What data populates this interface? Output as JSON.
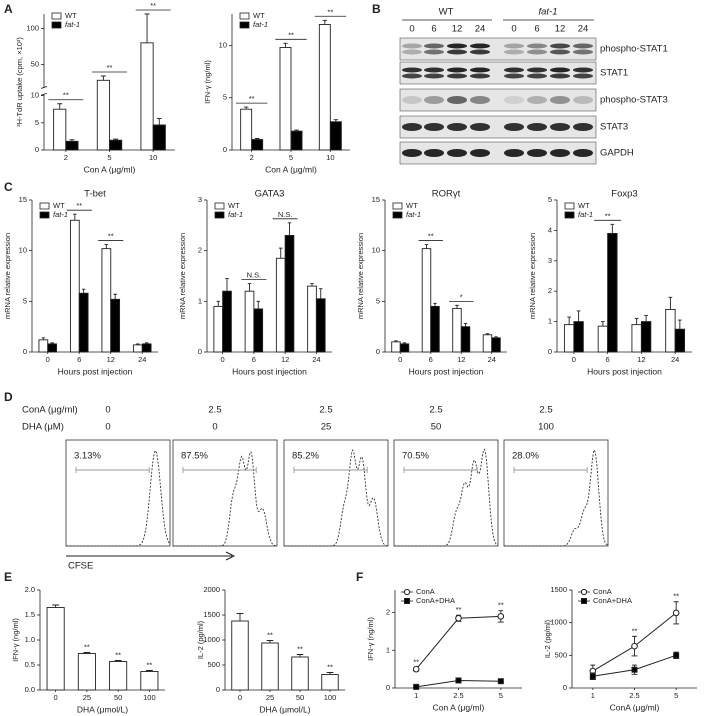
{
  "panel_labels": [
    "A",
    "B",
    "C",
    "D",
    "E",
    "F"
  ],
  "blot": {
    "groups": [
      "WT",
      "fat-1"
    ],
    "lanes": [
      "0",
      "6",
      "12",
      "24",
      "0",
      "6",
      "12",
      "24"
    ],
    "rows": [
      "phospho-STAT1",
      "STAT1",
      "phospho-STAT3",
      "STAT3",
      "GAPDH"
    ]
  },
  "flow": {
    "row_labels": [
      "ConA (μg/ml)",
      "DHA (μM)"
    ],
    "cona": [
      "0",
      "2.5",
      "2.5",
      "2.5",
      "2.5"
    ],
    "dha": [
      "0",
      "0",
      "25",
      "50",
      "100"
    ],
    "percentages": [
      "3.13%",
      "87.5%",
      "85.2%",
      "70.5%",
      "28.0%"
    ],
    "axis_label": "CFSE"
  },
  "chart_data": [
    {
      "type": "bar",
      "ylabel": "³H-TdR uptake (cpm, ×10³)",
      "xlabel": "Con A (μg/ml)",
      "categories": [
        "2",
        "5",
        "10"
      ],
      "ylim": [
        0,
        120
      ],
      "ybreak": [
        10,
        20
      ],
      "yticks": [
        0,
        5,
        10,
        50,
        100
      ],
      "series": [
        {
          "name": "WT",
          "color": "#ffffff",
          "values": [
            7.5,
            28,
            80
          ],
          "errors": [
            1,
            6,
            40
          ]
        },
        {
          "name": "fat-1",
          "color": "#000000",
          "values": [
            1.6,
            1.8,
            4.6
          ],
          "errors": [
            0.3,
            0.2,
            1.2
          ]
        }
      ],
      "significance": [
        "**",
        "**",
        "**"
      ]
    },
    {
      "type": "bar",
      "ylabel": "IFN-γ (ng/ml)",
      "xlabel": "Con A (μg/ml)",
      "categories": [
        "2",
        "5",
        "10"
      ],
      "ylim": [
        0,
        13
      ],
      "yticks": [
        0,
        5,
        10
      ],
      "series": [
        {
          "name": "WT",
          "color": "#ffffff",
          "values": [
            3.9,
            9.8,
            12
          ],
          "errors": [
            0.2,
            0.4,
            0.4
          ]
        },
        {
          "name": "fat-1",
          "color": "#000000",
          "values": [
            1,
            1.8,
            2.7
          ],
          "errors": [
            0.1,
            0.1,
            0.2
          ]
        }
      ],
      "significance": [
        "**",
        "**",
        "**"
      ]
    },
    {
      "type": "bar",
      "title": "T-bet",
      "ylabel": "mRNA relative expression",
      "xlabel": "Hours post injection",
      "categories": [
        "0",
        "6",
        "12",
        "24"
      ],
      "ylim": [
        0,
        15
      ],
      "yticks": [
        0,
        5,
        10,
        15
      ],
      "series": [
        {
          "name": "WT",
          "color": "#ffffff",
          "values": [
            1.2,
            13,
            10.2,
            0.7
          ],
          "errors": [
            0.2,
            0.6,
            0.4,
            0.1
          ]
        },
        {
          "name": "fat-1",
          "color": "#000000",
          "values": [
            0.8,
            5.8,
            5.2,
            0.8
          ],
          "errors": [
            0.1,
            0.4,
            0.5,
            0.1
          ]
        }
      ],
      "significance": [
        null,
        "**",
        "**",
        null
      ]
    },
    {
      "type": "bar",
      "title": "GATA3",
      "ylabel": "mRNA relative expression",
      "xlabel": "Hours post injection",
      "categories": [
        "0",
        "6",
        "12",
        "24"
      ],
      "ylim": [
        0,
        3
      ],
      "yticks": [
        0,
        1,
        2,
        3
      ],
      "series": [
        {
          "name": "WT",
          "color": "#ffffff",
          "values": [
            0.9,
            1.2,
            1.85,
            1.3
          ],
          "errors": [
            0.1,
            0.15,
            0.2,
            0.05
          ]
        },
        {
          "name": "fat-1",
          "color": "#000000",
          "values": [
            1.2,
            0.85,
            2.3,
            1.05
          ],
          "errors": [
            0.25,
            0.15,
            0.25,
            0.2
          ]
        }
      ],
      "significance": [
        null,
        "N.S.",
        "N.S.",
        null
      ]
    },
    {
      "type": "bar",
      "title": "RORγt",
      "ylabel": "mRNA relative expression",
      "xlabel": "Hours post injection",
      "categories": [
        "0",
        "6",
        "12",
        "24"
      ],
      "ylim": [
        0,
        15
      ],
      "yticks": [
        0,
        5,
        10,
        15
      ],
      "series": [
        {
          "name": "WT",
          "color": "#ffffff",
          "values": [
            1,
            10.2,
            4.3,
            1.7
          ],
          "errors": [
            0.1,
            0.4,
            0.3,
            0.1
          ]
        },
        {
          "name": "fat-1",
          "color": "#000000",
          "values": [
            0.8,
            4.5,
            2.5,
            1.4
          ],
          "errors": [
            0.1,
            0.3,
            0.3,
            0.1
          ]
        }
      ],
      "significance": [
        null,
        "**",
        "*",
        null
      ]
    },
    {
      "type": "bar",
      "title": "Foxp3",
      "ylabel": "mRNA relative expression",
      "xlabel": "Hours post injection",
      "categories": [
        "0",
        "6",
        "12",
        "24"
      ],
      "ylim": [
        0,
        5
      ],
      "yticks": [
        0,
        1,
        2,
        3,
        4,
        5
      ],
      "series": [
        {
          "name": "WT",
          "color": "#ffffff",
          "values": [
            0.9,
            0.85,
            0.9,
            1.4
          ],
          "errors": [
            0.25,
            0.15,
            0.2,
            0.4
          ]
        },
        {
          "name": "fat-1",
          "color": "#000000",
          "values": [
            1,
            3.9,
            1,
            0.75
          ],
          "errors": [
            0.35,
            0.3,
            0.2,
            0.3
          ]
        }
      ],
      "significance": [
        null,
        "**",
        null,
        null
      ]
    },
    {
      "type": "bar",
      "ylabel": "IFN-γ (ng/ml)",
      "xlabel": "DHA (μmol/L)",
      "categories": [
        "0",
        "25",
        "50",
        "100"
      ],
      "ylim": [
        0,
        2
      ],
      "yticks": [
        {
          "value": 0,
          "label": "0.0"
        },
        0.5,
        {
          "value": 1,
          "label": "1.0"
        },
        1.5,
        {
          "value": 2,
          "label": "2.0"
        }
      ],
      "series": [
        {
          "color": "#ffffff",
          "values": [
            1.65,
            0.73,
            0.57,
            0.37
          ],
          "errors": [
            0.05,
            0.02,
            0.02,
            0.02
          ]
        }
      ],
      "significance": [
        null,
        "**",
        "**",
        "**"
      ]
    },
    {
      "type": "bar",
      "ylabel": "IL-2 (pg/ml)",
      "xlabel": "DHA (μmol/L)",
      "categories": [
        "0",
        "25",
        "50",
        "100"
      ],
      "ylim": [
        0,
        2000
      ],
      "yticks": [
        0,
        500,
        1000,
        1500,
        2000
      ],
      "series": [
        {
          "color": "#ffffff",
          "values": [
            1380,
            940,
            660,
            310
          ],
          "errors": [
            150,
            50,
            50,
            40
          ]
        }
      ],
      "significance": [
        null,
        "**",
        "**",
        "**"
      ]
    },
    {
      "type": "line",
      "ylabel": "IFN-γ (ng/ml)",
      "xlabel": "Con A (μg/ml)",
      "categories": [
        "1",
        "2.5",
        "5"
      ],
      "ylim": [
        0,
        2.6
      ],
      "yticks": [
        0,
        1,
        2
      ],
      "series": [
        {
          "name": "ConA",
          "color": "#ffffff",
          "marker": "circle",
          "values": [
            0.5,
            1.85,
            1.9
          ],
          "errors": [
            0.05,
            0.08,
            0.15
          ]
        },
        {
          "name": "ConA+DHA",
          "color": "#000000",
          "marker": "square",
          "values": [
            0.03,
            0.2,
            0.18
          ],
          "errors": [
            0.02,
            0.03,
            0.02
          ]
        }
      ],
      "significance": [
        "**",
        "**",
        "**"
      ]
    },
    {
      "type": "line",
      "ylabel": "IL-2 (pg/ml)",
      "xlabel": "ConA (μg/ml)",
      "categories": [
        "1",
        "2.5",
        "5"
      ],
      "ylim": [
        0,
        1500
      ],
      "yticks": [
        0,
        500,
        1000,
        1500
      ],
      "series": [
        {
          "name": "ConA",
          "color": "#ffffff",
          "marker": "circle",
          "values": [
            260,
            640,
            1150
          ],
          "errors": [
            90,
            150,
            170
          ]
        },
        {
          "name": "ConA+DHA",
          "color": "#000000",
          "marker": "square",
          "values": [
            180,
            280,
            500
          ],
          "errors": [
            50,
            70,
            50
          ]
        }
      ],
      "significance": [
        null,
        "**",
        "**"
      ]
    }
  ]
}
